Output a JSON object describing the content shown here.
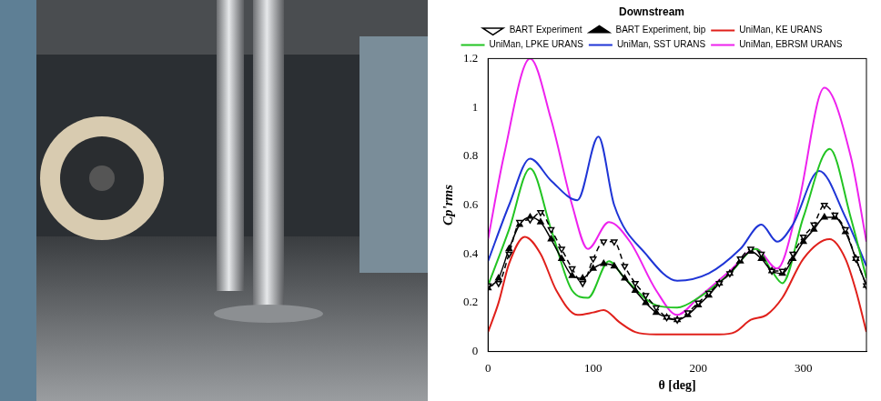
{
  "chart_data": {
    "type": "line",
    "title": "Downstream",
    "x_label": "θ [deg]",
    "y_label": "Cp'rms",
    "xlim": [
      0,
      360
    ],
    "xticks": [
      0,
      100,
      200,
      300
    ],
    "ylim": [
      0,
      1.2
    ],
    "yticks": [
      0,
      0.2,
      0.4,
      0.6,
      0.8,
      1,
      1.2
    ],
    "grid": false,
    "legend": "top",
    "series": [
      {
        "name": "BART Experiment",
        "color": "#000000",
        "marker": "triangle_down",
        "line_style": "dashed",
        "x": [
          0,
          10,
          20,
          30,
          40,
          50,
          60,
          70,
          80,
          90,
          100,
          110,
          120,
          130,
          140,
          150,
          160,
          170,
          180,
          190,
          200,
          210,
          220,
          230,
          240,
          250,
          260,
          270,
          280,
          290,
          300,
          310,
          320,
          330,
          340,
          350,
          360
        ],
        "values": [
          0.27,
          0.28,
          0.4,
          0.53,
          0.54,
          0.57,
          0.5,
          0.42,
          0.34,
          0.28,
          0.38,
          0.45,
          0.45,
          0.35,
          0.28,
          0.23,
          0.18,
          0.14,
          0.13,
          0.16,
          0.2,
          0.24,
          0.28,
          0.32,
          0.38,
          0.42,
          0.4,
          0.33,
          0.33,
          0.4,
          0.47,
          0.52,
          0.6,
          0.56,
          0.5,
          0.38,
          0.27
        ]
      },
      {
        "name": "BART Experiment, bip",
        "color": "#000000",
        "marker": "triangle",
        "line_style": "solid",
        "x": [
          0,
          10,
          20,
          30,
          40,
          50,
          60,
          70,
          80,
          90,
          100,
          110,
          120,
          130,
          140,
          150,
          160,
          170,
          180,
          190,
          200,
          210,
          220,
          230,
          240,
          250,
          260,
          270,
          280,
          290,
          300,
          310,
          320,
          330,
          340,
          350,
          360
        ],
        "values": [
          0.26,
          0.3,
          0.42,
          0.52,
          0.55,
          0.53,
          0.46,
          0.38,
          0.31,
          0.3,
          0.34,
          0.36,
          0.35,
          0.3,
          0.25,
          0.2,
          0.16,
          0.14,
          0.13,
          0.15,
          0.19,
          0.23,
          0.28,
          0.32,
          0.37,
          0.41,
          0.38,
          0.33,
          0.32,
          0.38,
          0.45,
          0.5,
          0.55,
          0.55,
          0.49,
          0.38,
          0.27
        ]
      },
      {
        "name": "UniMan, KE URANS",
        "color": "#e0201b",
        "marker": "none",
        "line_style": "solid",
        "x": [
          0,
          10,
          20,
          35,
          50,
          65,
          85,
          100,
          110,
          125,
          140,
          160,
          180,
          200,
          220,
          235,
          250,
          265,
          280,
          300,
          325,
          340,
          350,
          360
        ],
        "values": [
          0.08,
          0.2,
          0.36,
          0.47,
          0.4,
          0.25,
          0.15,
          0.16,
          0.17,
          0.12,
          0.08,
          0.07,
          0.07,
          0.07,
          0.07,
          0.08,
          0.13,
          0.15,
          0.22,
          0.38,
          0.46,
          0.38,
          0.25,
          0.08
        ]
      },
      {
        "name": "UniMan, LPKE URANS",
        "color": "#22c422",
        "marker": "none",
        "line_style": "solid",
        "x": [
          0,
          20,
          40,
          60,
          80,
          95,
          115,
          130,
          160,
          180,
          200,
          230,
          255,
          270,
          280,
          300,
          325,
          345,
          360
        ],
        "values": [
          0.27,
          0.5,
          0.75,
          0.5,
          0.25,
          0.22,
          0.37,
          0.3,
          0.19,
          0.18,
          0.22,
          0.32,
          0.42,
          0.33,
          0.28,
          0.55,
          0.83,
          0.55,
          0.3
        ]
      },
      {
        "name": "UniMan, SST URANS",
        "color": "#1f35d6",
        "marker": "none",
        "line_style": "solid",
        "x": [
          0,
          20,
          40,
          60,
          85,
          105,
          120,
          150,
          180,
          210,
          240,
          260,
          275,
          290,
          315,
          340,
          360
        ],
        "values": [
          0.37,
          0.6,
          0.79,
          0.7,
          0.62,
          0.88,
          0.6,
          0.4,
          0.29,
          0.32,
          0.42,
          0.52,
          0.45,
          0.52,
          0.74,
          0.55,
          0.35
        ]
      },
      {
        "name": "UniMan, EBRSM URANS",
        "color": "#ee22ee",
        "marker": "none",
        "line_style": "solid",
        "x": [
          0,
          15,
          40,
          60,
          80,
          95,
          115,
          135,
          160,
          180,
          200,
          230,
          255,
          275,
          295,
          320,
          345,
          360
        ],
        "values": [
          0.46,
          0.8,
          1.2,
          0.95,
          0.6,
          0.42,
          0.53,
          0.45,
          0.25,
          0.15,
          0.22,
          0.33,
          0.42,
          0.34,
          0.6,
          1.08,
          0.8,
          0.45
        ]
      }
    ]
  }
}
